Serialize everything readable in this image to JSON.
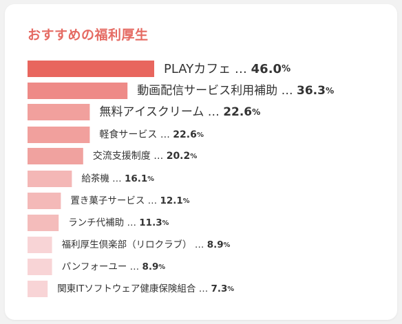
{
  "title": "おすすめの福利厚生",
  "chart_data": {
    "type": "bar",
    "orientation": "horizontal",
    "title": "おすすめの福利厚生",
    "unit": "%",
    "grid": false,
    "legend": "none",
    "xlim": [
      0,
      46.0
    ],
    "categories": [
      "PLAYカフェ",
      "動画配信サービス利用補助",
      "無料アイスクリーム",
      "軽食サービス",
      "交流支援制度",
      "給茶機",
      "置き菓子サービス",
      "ランチ代補助",
      "福利厚生倶楽部（リロクラブ）",
      "パンフォーユー",
      "関東ITソフトウェア健康保険組合"
    ],
    "values": [
      46.0,
      36.3,
      22.6,
      22.6,
      20.2,
      16.1,
      12.1,
      11.3,
      8.9,
      8.9,
      7.3
    ],
    "value_labels": [
      "46.0",
      "36.3",
      "22.6",
      "22.6",
      "20.2",
      "16.1",
      "12.1",
      "11.3",
      "8.9",
      "8.9",
      "7.3"
    ],
    "separator": "…",
    "colors": [
      "#e8665e",
      "#ee8a87",
      "#f1a09d",
      "#f1a09d",
      "#f0a29f",
      "#f4b7b6",
      "#f4b9b8",
      "#f4bcbb",
      "#f8d4d6",
      "#f8d4d6",
      "#f8d4d6"
    ]
  }
}
